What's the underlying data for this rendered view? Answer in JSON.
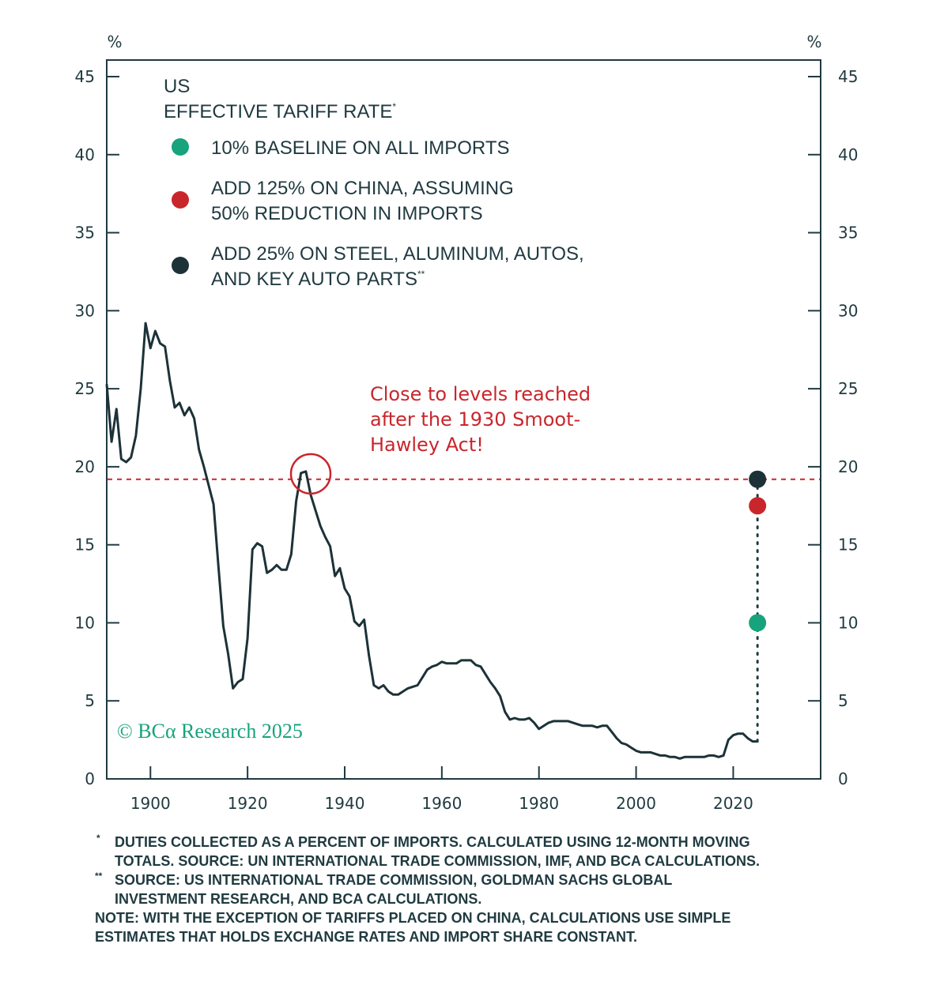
{
  "chart_data": {
    "type": "line",
    "title_line1": "US",
    "title_line2": "EFFECTIVE TARIFF RATE",
    "title_mark": "*",
    "y_unit_left": "%",
    "y_unit_right": "%",
    "ylim": [
      0,
      45
    ],
    "xlim": [
      1891,
      2038
    ],
    "y_ticks": [
      "0",
      "5",
      "10",
      "15",
      "20",
      "25",
      "30",
      "35",
      "40",
      "45"
    ],
    "x_ticks": [
      "1900",
      "1920",
      "1940",
      "1960",
      "1980",
      "2000",
      "2020"
    ],
    "series": [
      {
        "name": "US effective tariff rate",
        "x": [
          1891,
          1892,
          1893,
          1894,
          1895,
          1896,
          1897,
          1898,
          1899,
          1900,
          1901,
          1902,
          1903,
          1904,
          1905,
          1906,
          1907,
          1908,
          1909,
          1910,
          1911,
          1912,
          1913,
          1914,
          1915,
          1916,
          1917,
          1918,
          1919,
          1920,
          1921,
          1922,
          1923,
          1924,
          1925,
          1926,
          1927,
          1928,
          1929,
          1930,
          1931,
          1932,
          1933,
          1934,
          1935,
          1936,
          1937,
          1938,
          1939,
          1940,
          1941,
          1942,
          1943,
          1944,
          1945,
          1946,
          1947,
          1948,
          1949,
          1950,
          1951,
          1952,
          1953,
          1954,
          1955,
          1956,
          1957,
          1958,
          1959,
          1960,
          1961,
          1962,
          1963,
          1964,
          1965,
          1966,
          1967,
          1968,
          1969,
          1970,
          1971,
          1972,
          1973,
          1974,
          1975,
          1976,
          1977,
          1978,
          1979,
          1980,
          1981,
          1982,
          1983,
          1984,
          1985,
          1986,
          1987,
          1988,
          1989,
          1990,
          1991,
          1992,
          1993,
          1994,
          1995,
          1996,
          1997,
          1998,
          1999,
          2000,
          2001,
          2002,
          2003,
          2004,
          2005,
          2006,
          2007,
          2008,
          2009,
          2010,
          2011,
          2012,
          2013,
          2014,
          2015,
          2016,
          2017,
          2018,
          2019,
          2020,
          2021,
          2022,
          2023,
          2024,
          2025
        ],
        "values": [
          25.3,
          21.6,
          23.7,
          20.5,
          20.3,
          20.6,
          22.0,
          25.0,
          29.2,
          27.6,
          28.7,
          27.9,
          27.7,
          25.5,
          23.8,
          24.1,
          23.3,
          23.8,
          23.1,
          21.1,
          20.0,
          18.8,
          17.6,
          13.6,
          9.8,
          8.0,
          5.8,
          6.2,
          6.4,
          9.0,
          14.7,
          15.1,
          14.9,
          13.2,
          13.4,
          13.7,
          13.4,
          13.4,
          14.4,
          17.8,
          19.6,
          19.7,
          18.2,
          17.2,
          16.2,
          15.5,
          14.9,
          13.0,
          13.5,
          12.2,
          11.7,
          10.1,
          9.8,
          10.2,
          7.9,
          6.0,
          5.8,
          6.0,
          5.6,
          5.4,
          5.4,
          5.6,
          5.8,
          5.9,
          6.0,
          6.5,
          7.0,
          7.2,
          7.3,
          7.5,
          7.4,
          7.4,
          7.4,
          7.6,
          7.6,
          7.6,
          7.3,
          7.2,
          6.7,
          6.2,
          5.8,
          5.3,
          4.3,
          3.8,
          3.9,
          3.8,
          3.8,
          3.9,
          3.6,
          3.2,
          3.4,
          3.6,
          3.7,
          3.7,
          3.7,
          3.7,
          3.6,
          3.5,
          3.4,
          3.4,
          3.4,
          3.3,
          3.4,
          3.4,
          3.0,
          2.6,
          2.3,
          2.2,
          2.0,
          1.8,
          1.7,
          1.7,
          1.7,
          1.6,
          1.5,
          1.5,
          1.4,
          1.4,
          1.3,
          1.4,
          1.4,
          1.4,
          1.4,
          1.4,
          1.5,
          1.5,
          1.4,
          1.5,
          2.5,
          2.8,
          2.9,
          2.9,
          2.6,
          2.4,
          2.4
        ]
      }
    ],
    "scenario_points": [
      {
        "label": "10% BASELINE ON ALL IMPORTS",
        "x": 2025,
        "y": 10.0,
        "color": "#17a37c"
      },
      {
        "label": "ADD 125% ON CHINA, ASSUMING 50% REDUCTION IN IMPORTS",
        "x": 2025,
        "y": 17.5,
        "color": "#c9262c"
      },
      {
        "label": "ADD 25% ON STEEL, ALUMINUM, AUTOS, AND KEY AUTO PARTS",
        "x": 2025,
        "y": 19.2,
        "color": "#1c3238"
      }
    ],
    "legend": [
      {
        "line1": "10% BASELINE ON ALL IMPORTS",
        "line2": "",
        "color": "#17a37c"
      },
      {
        "line1": "ADD 125% ON CHINA, ASSUMING",
        "line2": "50% REDUCTION IN IMPORTS",
        "color": "#c9262c"
      },
      {
        "line1": "ADD 25% ON STEEL, ALUMINUM, AUTOS,",
        "line2": "AND KEY AUTO PARTS",
        "mark": "**",
        "color": "#1c3238"
      }
    ],
    "reference_line": {
      "y": 19.2,
      "color": "#c9262c",
      "style": "dashed"
    },
    "highlight": {
      "x": 1933,
      "y": 19.8
    },
    "annotation": [
      "Close to levels reached",
      "after the 1930 Smoot-",
      "Hawley Act!"
    ],
    "watermark": "© BCα Research 2025"
  },
  "colors": {
    "line": "#1c3238",
    "axis": "#1f3a40",
    "accent_red": "#c9262c",
    "accent_green": "#17a37c"
  },
  "footnotes": {
    "note1_mark": "*",
    "note1_line1": "DUTIES COLLECTED AS A PERCENT OF IMPORTS. CALCULATED USING 12-MONTH MOVING",
    "note1_line2": "TOTALS. SOURCE: UN INTERNATIONAL TRADE COMMISSION, IMF, AND BCA CALCULATIONS.",
    "note2_mark": "**",
    "note2_line1": "SOURCE: US INTERNATIONAL TRADE COMMISSION, GOLDMAN SACHS GLOBAL",
    "note2_line2": "INVESTMENT RESEARCH, AND BCA CALCULATIONS.",
    "note3_line1": "NOTE: WITH THE EXCEPTION OF TARIFFS PLACED ON CHINA, CALCULATIONS USE SIMPLE",
    "note3_line2": "ESTIMATES THAT HOLDS EXCHANGE RATES AND IMPORT SHARE CONSTANT."
  }
}
